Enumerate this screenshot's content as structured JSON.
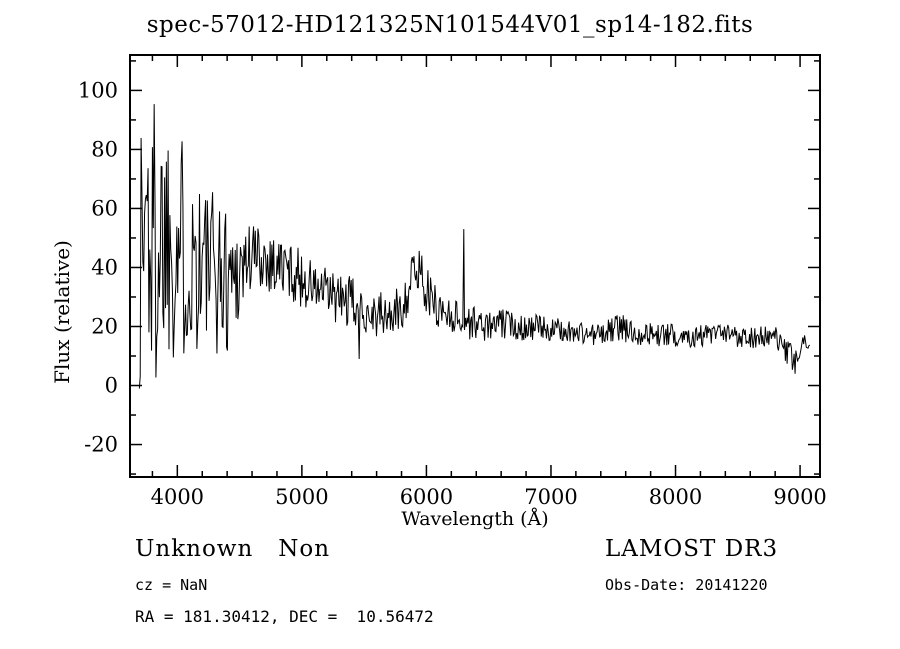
{
  "page": {
    "title": "spec-57012-HD121325N101544V01_sp14-182.fits"
  },
  "annotations": {
    "class_label": "Unknown   Non",
    "cz": "cz = NaN",
    "coords": "RA = 181.30412, DEC =  10.56472",
    "survey": "LAMOST DR3",
    "obs_date": "Obs-Date: 20141220"
  },
  "chart_data": {
    "type": "line",
    "title": "spec-57012-HD121325N101544V01_sp14-182.fits",
    "xlabel": "Wavelength (Å)",
    "ylabel": "Flux (relative)",
    "xlim": [
      3620,
      9160
    ],
    "ylim": [
      -31,
      112
    ],
    "xticks": [
      4000,
      5000,
      6000,
      7000,
      8000,
      9000
    ],
    "yticks": [
      -20,
      0,
      20,
      40,
      60,
      80,
      100
    ],
    "x_minor_step": 200,
    "y_minor_step": 10,
    "grid": false,
    "legend": "none",
    "line_color": "#000000",
    "background": "#ffffff",
    "series": [
      {
        "name": "spectrum",
        "x_start": 3695,
        "x_end": 9080,
        "sample_step": 7,
        "noise_seed": 1337,
        "envelope": [
          [
            3695,
            40,
            65
          ],
          [
            3750,
            60,
            55
          ],
          [
            3800,
            45,
            60
          ],
          [
            3850,
            50,
            50
          ],
          [
            3900,
            55,
            45
          ],
          [
            4000,
            48,
            40
          ],
          [
            4100,
            45,
            38
          ],
          [
            4200,
            42,
            32
          ],
          [
            4300,
            38,
            28
          ],
          [
            4400,
            36,
            26
          ],
          [
            4500,
            40,
            18
          ],
          [
            4600,
            44,
            13
          ],
          [
            4700,
            43,
            11
          ],
          [
            4800,
            41,
            11
          ],
          [
            4900,
            39,
            10
          ],
          [
            5000,
            36,
            10
          ],
          [
            5100,
            33,
            9
          ],
          [
            5200,
            31,
            9
          ],
          [
            5300,
            29,
            9
          ],
          [
            5400,
            28,
            9
          ],
          [
            5500,
            26,
            8
          ],
          [
            5600,
            24,
            8
          ],
          [
            5700,
            23,
            8
          ],
          [
            5800,
            26,
            8
          ],
          [
            5880,
            36,
            9
          ],
          [
            5950,
            40,
            9
          ],
          [
            6020,
            30,
            8
          ],
          [
            6100,
            26,
            7
          ],
          [
            6200,
            24,
            6
          ],
          [
            6300,
            22,
            6
          ],
          [
            6400,
            21,
            6
          ],
          [
            6500,
            20,
            5
          ],
          [
            6600,
            21,
            5
          ],
          [
            6800,
            20,
            5
          ],
          [
            7000,
            19,
            4
          ],
          [
            7200,
            18,
            4
          ],
          [
            7400,
            17,
            4
          ],
          [
            7550,
            20,
            5
          ],
          [
            7650,
            18,
            4
          ],
          [
            7900,
            17,
            4
          ],
          [
            8200,
            17,
            4
          ],
          [
            8500,
            17,
            4
          ],
          [
            8800,
            16,
            4
          ],
          [
            8950,
            8,
            5
          ],
          [
            9020,
            13,
            4
          ],
          [
            9080,
            14,
            3
          ]
        ],
        "spikes": [
          [
            6300,
            53
          ],
          [
            5460,
            9
          ],
          [
            8960,
            4
          ]
        ]
      }
    ]
  }
}
